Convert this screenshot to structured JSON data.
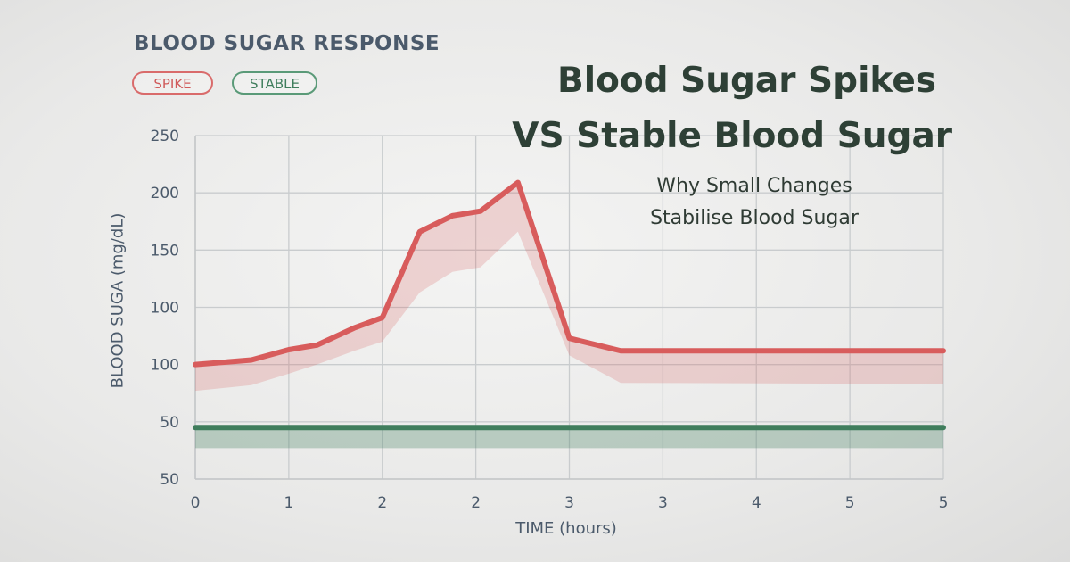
{
  "chart_data": {
    "type": "line",
    "title": "BLOOD SUGAR RESPONSE",
    "headline": [
      "Blood Sugar Spikes",
      "VS Stable Blood Sugar"
    ],
    "subtitle": [
      "Why Small Changes",
      "Stabilise Blood Sugar"
    ],
    "legend": [
      "SPIKE",
      "STABLE"
    ],
    "xlabel": "TIME (hours)",
    "ylabel": "BLOOD SUGA (mg/dL)",
    "x_tick_labels": [
      "0",
      "1",
      "2",
      "2",
      "3",
      "3",
      "4",
      "5",
      "5"
    ],
    "y_tick_labels": [
      "250",
      "200",
      "150",
      "100",
      "100",
      "50",
      "50"
    ],
    "xlim": [
      0,
      8
    ],
    "ylim": [
      0,
      300
    ],
    "grid": true,
    "legend_position": "top-left",
    "x": [
      0,
      0.6,
      1,
      1.3,
      1.7,
      2,
      2.4,
      2.75,
      3.05,
      3.45,
      4,
      4.55,
      8
    ],
    "series": [
      {
        "name": "SPIKE",
        "color": "#d85c5c",
        "values": [
          100,
          104,
          113,
          117,
          132,
          141,
          216,
          230,
          234,
          259,
          123,
          112,
          112
        ],
        "band_lower": [
          77,
          82,
          92,
          100,
          112,
          120,
          163,
          181,
          185,
          216,
          108,
          84,
          83
        ]
      },
      {
        "name": "STABLE",
        "color": "#3f7d5c",
        "values": [
          45,
          45,
          45,
          45,
          45,
          45,
          45,
          45,
          45,
          45,
          45,
          45,
          45
        ],
        "band_lower": [
          27,
          27,
          27,
          27,
          27,
          27,
          27,
          27,
          27,
          27,
          27,
          27,
          27
        ]
      }
    ]
  }
}
